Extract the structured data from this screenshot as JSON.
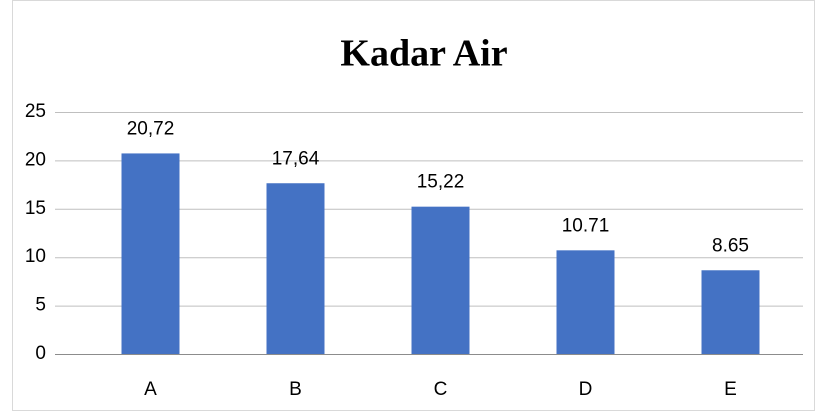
{
  "chart_data": {
    "type": "bar",
    "title": "Kadar Air",
    "categories": [
      "A",
      "B",
      "C",
      "D",
      "E"
    ],
    "values": [
      20.72,
      17.64,
      15.22,
      10.71,
      8.65
    ],
    "value_labels": [
      "20,72",
      "17,64",
      "15,22",
      "10.71",
      "8.65"
    ],
    "color": "#4472c4",
    "ylim": [
      0,
      25
    ],
    "yticks": [
      0,
      5,
      10,
      15,
      20,
      25
    ],
    "grid": true
  }
}
